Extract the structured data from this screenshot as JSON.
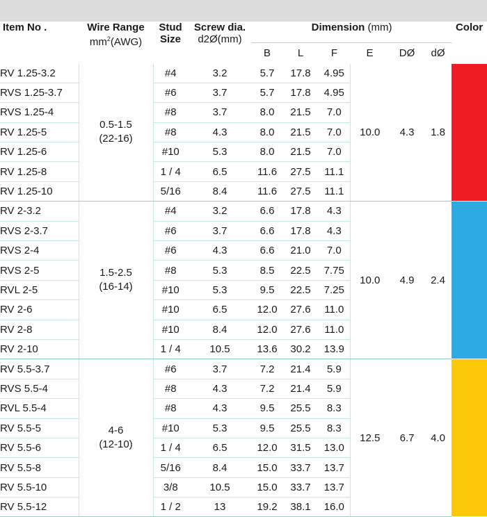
{
  "header": {
    "item_no": "Item No .",
    "wire_range": "Wire Range",
    "wire_unit_prefix": "mm",
    "wire_unit_sup": "2",
    "wire_unit_suffix": "(AWG)",
    "stud_1": "Stud",
    "stud_2": "Size",
    "screw_1": "Screw dia.",
    "screw_2": "d2Ø(mm)",
    "dimension": "Dimension",
    "dimension_unit": "(mm)",
    "color": "Color",
    "sub_cols": [
      "B",
      "L",
      "F",
      "E",
      "DØ",
      "dØ"
    ]
  },
  "groups": [
    {
      "wire_range": "0.5-1.5",
      "awg": "(22-16)",
      "E": "10.0",
      "D": "4.3",
      "d": "1.8",
      "color_hex": "#ee1c25",
      "rows": [
        {
          "item": "RV 1.25-3.2",
          "stud": "#4",
          "screw": "3.2",
          "B": "5.7",
          "L": "17.8",
          "F": "4.95"
        },
        {
          "item": "RVS 1.25-3.7",
          "stud": "#6",
          "screw": "3.7",
          "B": "5.7",
          "L": "17.8",
          "F": "4.95"
        },
        {
          "item": "RVS 1.25-4",
          "stud": "#8",
          "screw": "3.7",
          "B": "8.0",
          "L": "21.5",
          "F": "7.0"
        },
        {
          "item": "RV 1.25-5",
          "stud": "#8",
          "screw": "4.3",
          "B": "8.0",
          "L": "21.5",
          "F": "7.0"
        },
        {
          "item": "RV 1.25-6",
          "stud": "#10",
          "screw": "5.3",
          "B": "8.0",
          "L": "21.5",
          "F": "7.0"
        },
        {
          "item": "RV 1.25-8",
          "stud": "1 / 4",
          "screw": "6.5",
          "B": "11.6",
          "L": "27.5",
          "F": "11.1"
        },
        {
          "item": "RV 1.25-10",
          "stud": "5/16",
          "screw": "8.4",
          "B": "11.6",
          "L": "27.5",
          "F": "11.1"
        }
      ]
    },
    {
      "wire_range": "1.5-2.5",
      "awg": "(16-14)",
      "E": "10.0",
      "D": "4.9",
      "d": "2.4",
      "color_hex": "#2eaae1",
      "rows": [
        {
          "item": "RV 2-3.2",
          "stud": "#4",
          "screw": "3.2",
          "B": "6.6",
          "L": "17.8",
          "F": "4.3"
        },
        {
          "item": "RVS 2-3.7",
          "stud": "#6",
          "screw": "3.7",
          "B": "6.6",
          "L": "17.8",
          "F": "4.3"
        },
        {
          "item": "RVS 2-4",
          "stud": "#6",
          "screw": "4.3",
          "B": "6.6",
          "L": "21.0",
          "F": "7.0"
        },
        {
          "item": "RVS 2-5",
          "stud": "#8",
          "screw": "5.3",
          "B": "8.5",
          "L": "22.5",
          "F": "7.75"
        },
        {
          "item": "RVL 2-5",
          "stud": "#10",
          "screw": "5.3",
          "B": "9.5",
          "L": "22.5",
          "F": "7.25"
        },
        {
          "item": "RV 2-6",
          "stud": "#10",
          "screw": "6.5",
          "B": "12.0",
          "L": "27.6",
          "F": "11.0"
        },
        {
          "item": "RV 2-8",
          "stud": "#10",
          "screw": "8.4",
          "B": "12.0",
          "L": "27.6",
          "F": "11.0"
        },
        {
          "item": "RV 2-10",
          "stud": "1 / 4",
          "screw": "10.5",
          "B": "13.6",
          "L": "30.2",
          "F": "13.9"
        }
      ]
    },
    {
      "wire_range": "4-6",
      "awg": "(12-10)",
      "E": "12.5",
      "D": "6.7",
      "d": "4.0",
      "color_hex": "#fec80a",
      "rows": [
        {
          "item": "RV 5.5-3.7",
          "stud": "#6",
          "screw": "3.7",
          "B": "7.2",
          "L": "21.4",
          "F": "5.9"
        },
        {
          "item": "RVS 5.5-4",
          "stud": "#8",
          "screw": "4.3",
          "B": "7.2",
          "L": "21.4",
          "F": "5.9"
        },
        {
          "item": "RVL 5.5-4",
          "stud": "#8",
          "screw": "4.3",
          "B": "9.5",
          "L": "25.5",
          "F": "8.3"
        },
        {
          "item": "RV 5.5-5",
          "stud": "#10",
          "screw": "5.3",
          "B": "9.5",
          "L": "25.5",
          "F": "8.3"
        },
        {
          "item": "RV 5.5-6",
          "stud": "1 / 4",
          "screw": "6.5",
          "B": "12.0",
          "L": "31.5",
          "F": "13.0"
        },
        {
          "item": "RV 5.5-8",
          "stud": "5/16",
          "screw": "8.4",
          "B": "15.0",
          "L": "33.7",
          "F": "13.7"
        },
        {
          "item": "RV 5.5-10",
          "stud": "3/8",
          "screw": "10.5",
          "B": "15.0",
          "L": "33.7",
          "F": "13.7"
        },
        {
          "item": "RV 5.5-12",
          "stud": "1 / 2",
          "screw": "13",
          "B": "19.2",
          "L": "38.1",
          "F": "16.0"
        }
      ]
    }
  ]
}
